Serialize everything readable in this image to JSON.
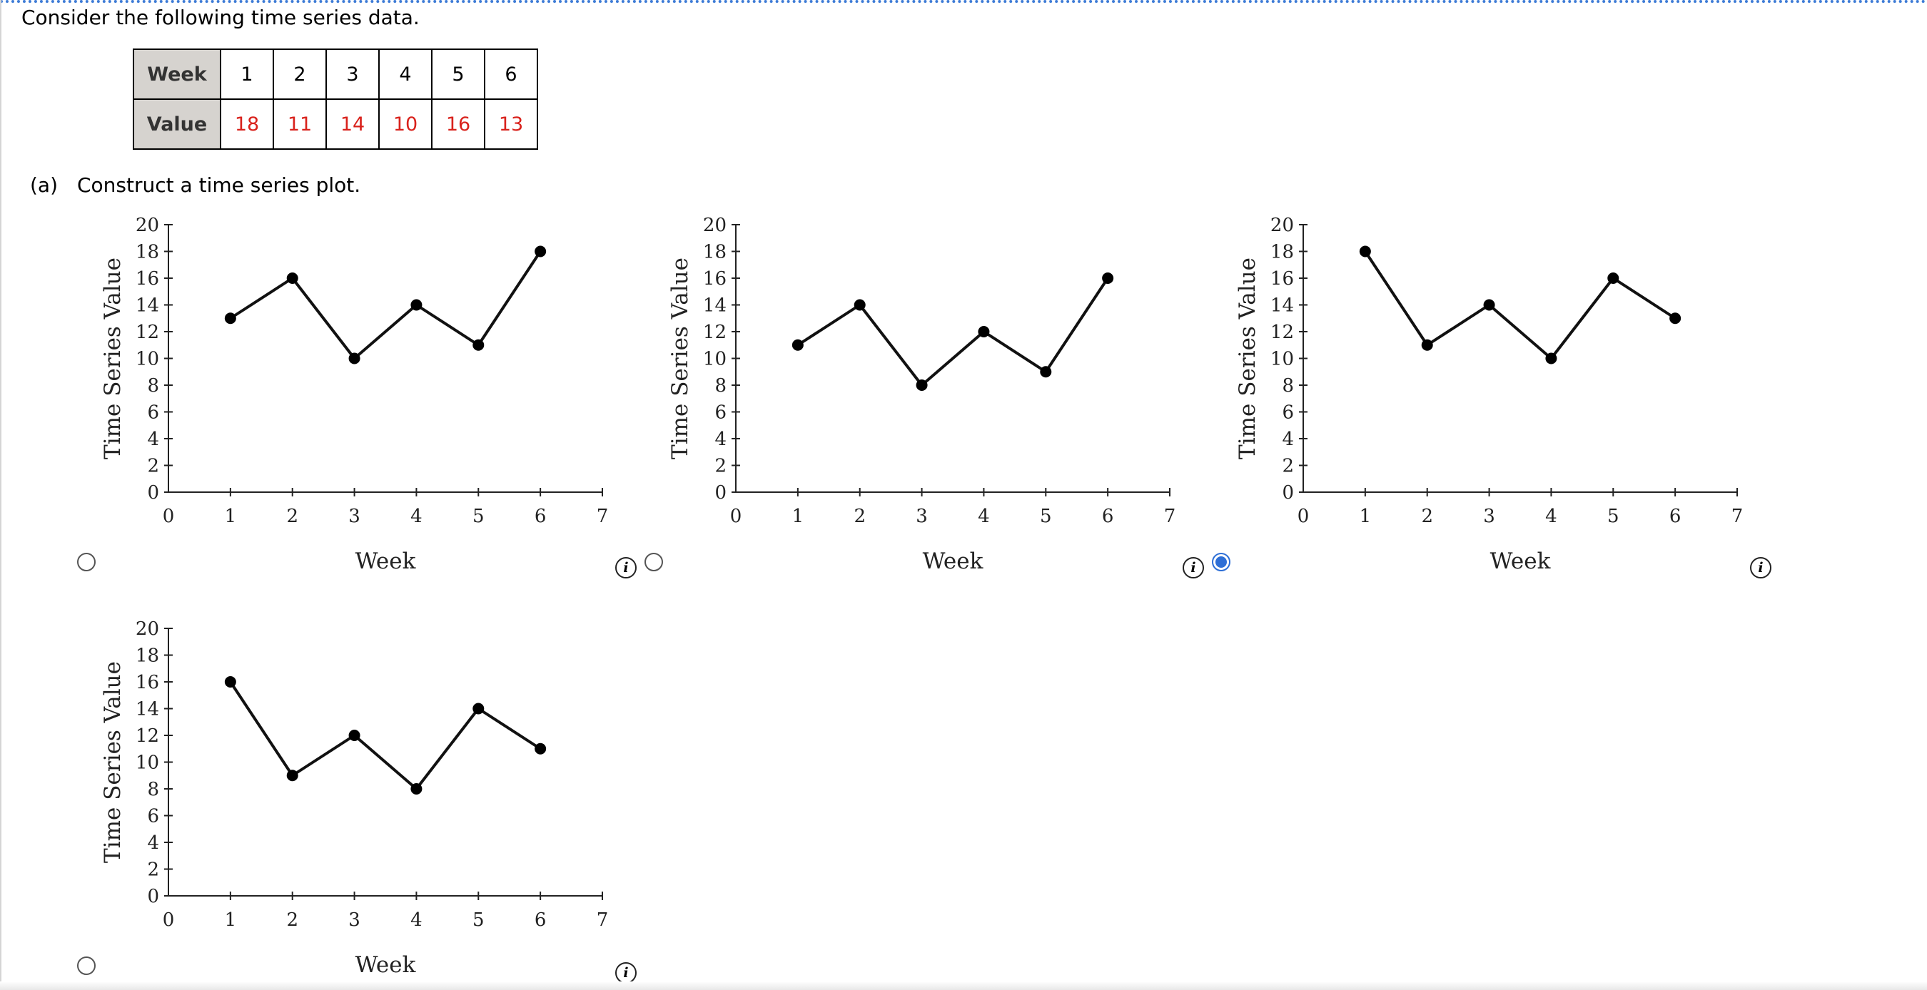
{
  "question": {
    "intro": "Consider the following time series data.",
    "table": {
      "row_headers": [
        "Week",
        "Value"
      ],
      "weeks": [
        "1",
        "2",
        "3",
        "4",
        "5",
        "6"
      ],
      "values": [
        "18",
        "11",
        "14",
        "10",
        "16",
        "13"
      ],
      "value_color": "#d9221c",
      "header_bg": "#d6d3cf"
    },
    "part_a": {
      "label": "(a)",
      "text": "Construct a time series plot."
    }
  },
  "options": [
    {
      "selected": false,
      "info_icon": "i"
    },
    {
      "selected": false,
      "info_icon": "i"
    },
    {
      "selected": true,
      "info_icon": "i"
    },
    {
      "selected": false,
      "info_icon": "i"
    }
  ],
  "selection_color": "#2e6fd6",
  "chart_data": [
    {
      "type": "line",
      "xlabel": "Week",
      "ylabel": "Time Series Value",
      "xlim": [
        0,
        7
      ],
      "ylim": [
        0,
        20
      ],
      "x_ticks": [
        0,
        1,
        2,
        3,
        4,
        5,
        6,
        7
      ],
      "y_ticks": [
        0,
        2,
        4,
        6,
        8,
        10,
        12,
        14,
        16,
        18,
        20
      ],
      "x": [
        1,
        2,
        3,
        4,
        5,
        6
      ],
      "y": [
        13,
        16,
        10,
        14,
        11,
        18
      ],
      "grid": false
    },
    {
      "type": "line",
      "xlabel": "Week",
      "ylabel": "Time Series Value",
      "xlim": [
        0,
        7
      ],
      "ylim": [
        0,
        20
      ],
      "x_ticks": [
        0,
        1,
        2,
        3,
        4,
        5,
        6,
        7
      ],
      "y_ticks": [
        0,
        2,
        4,
        6,
        8,
        10,
        12,
        14,
        16,
        18,
        20
      ],
      "x": [
        1,
        2,
        3,
        4,
        5,
        6
      ],
      "y": [
        11,
        14,
        8,
        12,
        9,
        16
      ],
      "grid": false
    },
    {
      "type": "line",
      "xlabel": "Week",
      "ylabel": "Time Series Value",
      "xlim": [
        0,
        7
      ],
      "ylim": [
        0,
        20
      ],
      "x_ticks": [
        0,
        1,
        2,
        3,
        4,
        5,
        6,
        7
      ],
      "y_ticks": [
        0,
        2,
        4,
        6,
        8,
        10,
        12,
        14,
        16,
        18,
        20
      ],
      "x": [
        1,
        2,
        3,
        4,
        5,
        6
      ],
      "y": [
        18,
        11,
        14,
        10,
        16,
        13
      ],
      "grid": false
    },
    {
      "type": "line",
      "xlabel": "Week",
      "ylabel": "Time Series Value",
      "xlim": [
        0,
        7
      ],
      "ylim": [
        0,
        20
      ],
      "x_ticks": [
        0,
        1,
        2,
        3,
        4,
        5,
        6,
        7
      ],
      "y_ticks": [
        0,
        2,
        4,
        6,
        8,
        10,
        12,
        14,
        16,
        18,
        20
      ],
      "x": [
        1,
        2,
        3,
        4,
        5,
        6
      ],
      "y": [
        16,
        9,
        12,
        8,
        14,
        11
      ],
      "grid": false
    }
  ]
}
